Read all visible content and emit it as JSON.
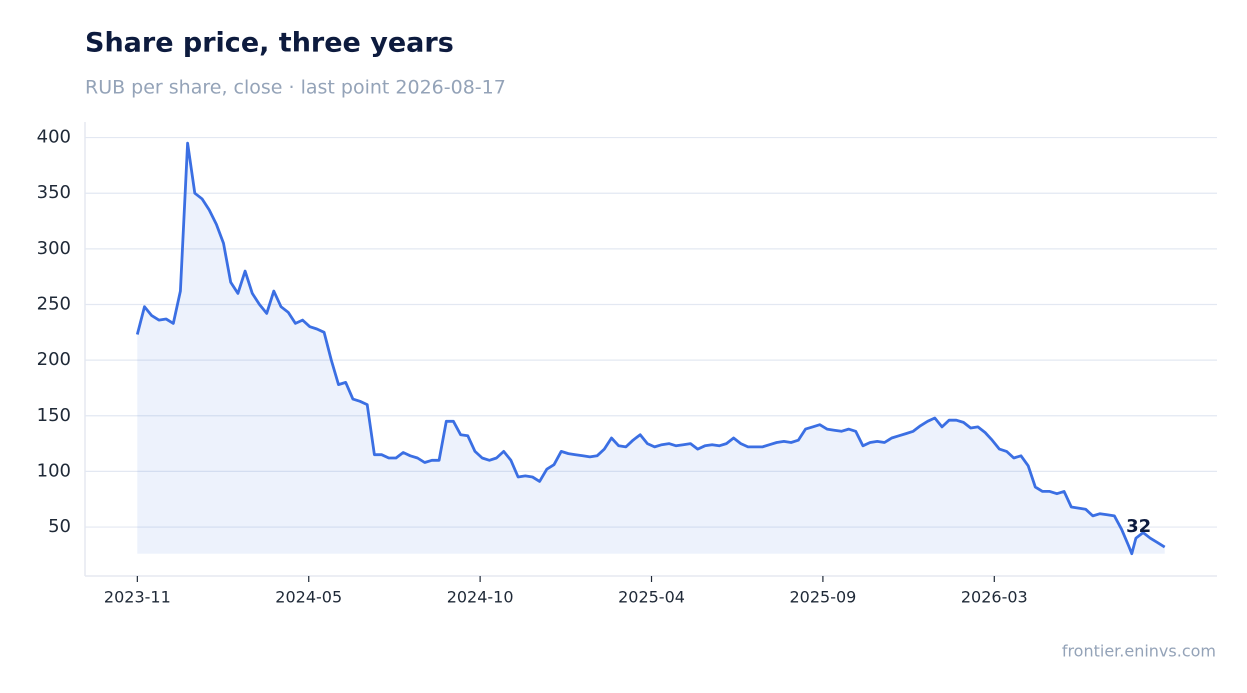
{
  "chart_data": {
    "type": "line",
    "title": "Share price, three years",
    "subtitle": "RUB per share, close · last point 2026-08-17",
    "source": "frontier.eninvs.com",
    "x": [
      "2023-11-20",
      "2023-11-27",
      "2023-12-04",
      "2023-12-11",
      "2023-12-18",
      "2023-12-25",
      "2024-01-01",
      "2024-01-08",
      "2024-01-15",
      "2024-01-22",
      "2024-01-29",
      "2024-02-05",
      "2024-02-12",
      "2024-02-19",
      "2024-02-26",
      "2024-03-04",
      "2024-03-11",
      "2024-03-18",
      "2024-03-25",
      "2024-04-01",
      "2024-04-08",
      "2024-04-15",
      "2024-04-22",
      "2024-04-29",
      "2024-05-06",
      "2024-05-13",
      "2024-05-20",
      "2024-05-27",
      "2024-06-03",
      "2024-06-10",
      "2024-06-17",
      "2024-06-24",
      "2024-07-01",
      "2024-07-08",
      "2024-07-15",
      "2024-07-22",
      "2024-07-29",
      "2024-08-05",
      "2024-08-12",
      "2024-08-19",
      "2024-08-26",
      "2024-09-02",
      "2024-09-09",
      "2024-09-16",
      "2024-09-23",
      "2024-09-30",
      "2024-10-07",
      "2024-10-14",
      "2024-10-21",
      "2024-10-28",
      "2024-11-04",
      "2024-11-11",
      "2024-11-18",
      "2024-11-25",
      "2024-12-02",
      "2024-12-09",
      "2024-12-16",
      "2024-12-23",
      "2024-12-30",
      "2025-01-06",
      "2025-01-13",
      "2025-01-20",
      "2025-01-27",
      "2025-02-03",
      "2025-02-10",
      "2025-02-17",
      "2025-02-24",
      "2025-03-03",
      "2025-03-10",
      "2025-03-17",
      "2025-03-24",
      "2025-03-31",
      "2025-04-07",
      "2025-04-14",
      "2025-04-21",
      "2025-04-28",
      "2025-05-05",
      "2025-05-12",
      "2025-05-19",
      "2025-05-26",
      "2025-06-02",
      "2025-06-09",
      "2025-06-16",
      "2025-06-23",
      "2025-06-30",
      "2025-07-07",
      "2025-07-14",
      "2025-07-21",
      "2025-07-28",
      "2025-08-04",
      "2025-08-11",
      "2025-08-18",
      "2025-08-25",
      "2025-09-01",
      "2025-09-08",
      "2025-09-15",
      "2025-09-22",
      "2025-09-29",
      "2025-10-06",
      "2025-10-13",
      "2025-10-20",
      "2025-10-27",
      "2025-11-03",
      "2025-11-10",
      "2025-11-17",
      "2025-11-24",
      "2025-12-01",
      "2025-12-08",
      "2025-12-15",
      "2025-12-22",
      "2025-12-29",
      "2026-01-05",
      "2026-01-12",
      "2026-01-19",
      "2026-01-26",
      "2026-02-02",
      "2026-02-09",
      "2026-02-16",
      "2026-02-23",
      "2026-03-02",
      "2026-03-09",
      "2026-03-16",
      "2026-03-23",
      "2026-03-30",
      "2026-04-06",
      "2026-04-13",
      "2026-04-20",
      "2026-04-27",
      "2026-05-04",
      "2026-05-11",
      "2026-05-18",
      "2026-05-25",
      "2026-06-01",
      "2026-06-08",
      "2026-06-15",
      "2026-06-22",
      "2026-06-29",
      "2026-07-06",
      "2026-07-13",
      "2026-07-16",
      "2026-07-20",
      "2026-07-27",
      "2026-08-03",
      "2026-08-10",
      "2026-08-17"
    ],
    "series": [
      {
        "name": "Close",
        "color": "#3b6fe3",
        "values": [
          223,
          248,
          240,
          236,
          237,
          233,
          262,
          395,
          350,
          345,
          335,
          322,
          305,
          270,
          260,
          280,
          260,
          250,
          242,
          262,
          248,
          243,
          233,
          236,
          230,
          228,
          225,
          200,
          178,
          180,
          165,
          163,
          160,
          115,
          115,
          112,
          112,
          117,
          114,
          112,
          108,
          110,
          110,
          145,
          145,
          133,
          132,
          118,
          112,
          110,
          112,
          118,
          110,
          95,
          96,
          95,
          91,
          102,
          106,
          118,
          116,
          115,
          114,
          113,
          114,
          120,
          130,
          123,
          122,
          128,
          133,
          125,
          122,
          124,
          125,
          123,
          124,
          125,
          120,
          123,
          124,
          123,
          125,
          130,
          125,
          122,
          122,
          122,
          124,
          126,
          127,
          126,
          128,
          138,
          140,
          142,
          138,
          137,
          136,
          138,
          136,
          123,
          126,
          127,
          126,
          130,
          132,
          134,
          136,
          141,
          145,
          148,
          140,
          146,
          146,
          144,
          139,
          140,
          135,
          128,
          120,
          118,
          112,
          114,
          105,
          86,
          82,
          82,
          80,
          82,
          68,
          67,
          66,
          60,
          62,
          61,
          60,
          48,
          33,
          26,
          40,
          45,
          40,
          36,
          32
        ]
      }
    ],
    "xlim": [
      "2023-09-30",
      "2026-10-07"
    ],
    "xticks": [
      {
        "value": "2023-11-20",
        "label": "2023-11"
      },
      {
        "value": "2024-05-05",
        "label": "2024-05"
      },
      {
        "value": "2024-10-19",
        "label": "2024-10"
      },
      {
        "value": "2025-04-04",
        "label": "2025-04"
      },
      {
        "value": "2025-09-18",
        "label": "2025-09"
      },
      {
        "value": "2026-03-04",
        "label": "2026-03"
      }
    ],
    "ylim": [
      6,
      414
    ],
    "yticks": [
      50,
      100,
      150,
      200,
      250,
      300,
      350,
      400
    ],
    "grid": true
  }
}
